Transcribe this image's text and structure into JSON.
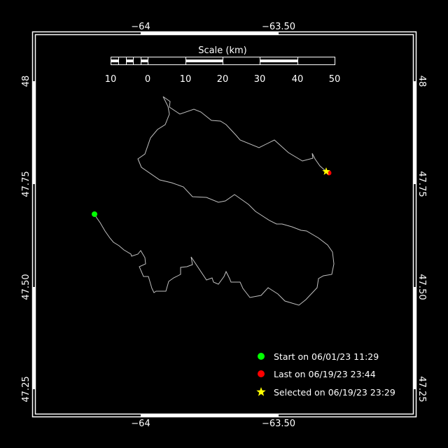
{
  "map": {
    "background": "#000000",
    "frame_color": "#ffffff",
    "track_color": "#c0c0c0",
    "lon_ticks": [
      {
        "value": -64,
        "label": "−64"
      },
      {
        "value": -63.5,
        "label": "−63.50"
      }
    ],
    "lat_ticks": [
      {
        "value": 48,
        "label": "48"
      },
      {
        "value": 47.75,
        "label": "47.75"
      },
      {
        "value": 47.5,
        "label": "47.50"
      },
      {
        "value": 47.25,
        "label": "47.25"
      }
    ],
    "scale": {
      "title": "Scale (km)",
      "labels": [
        "10",
        "0",
        "10",
        "20",
        "30",
        "40",
        "50"
      ]
    },
    "track": [
      [
        -64.1675,
        47.6769
      ],
      [
        -64.1599,
        47.6684
      ],
      [
        -64.1472,
        47.6565
      ],
      [
        -64.1294,
        47.636
      ],
      [
        -64.1117,
        47.619
      ],
      [
        -64.099,
        47.6088
      ],
      [
        -64.0787,
        47.6003
      ],
      [
        -64.0609,
        47.5901
      ],
      [
        -64.0355,
        47.5799
      ],
      [
        -64.033,
        47.5748
      ],
      [
        -64.0102,
        47.5799
      ],
      [
        -64.0,
        47.5884
      ],
      [
        -63.9848,
        47.5714
      ],
      [
        -63.9822,
        47.5561
      ],
      [
        -64.0051,
        47.5493
      ],
      [
        -63.9898,
        47.5255
      ],
      [
        -63.9721,
        47.5255
      ],
      [
        -63.9594,
        47.4966
      ],
      [
        -63.9518,
        47.4864
      ],
      [
        -63.9442,
        47.4898
      ],
      [
        -63.9086,
        47.4898
      ],
      [
        -63.8985,
        47.5136
      ],
      [
        -63.8807,
        47.5221
      ],
      [
        -63.8553,
        47.5306
      ],
      [
        -63.8553,
        47.5476
      ],
      [
        -63.8325,
        47.5493
      ],
      [
        -63.8122,
        47.5544
      ],
      [
        -63.8173,
        47.5731
      ],
      [
        -63.7614,
        47.517
      ],
      [
        -63.7411,
        47.5221
      ],
      [
        -63.736,
        47.5119
      ],
      [
        -63.7183,
        47.5068
      ],
      [
        -63.698,
        47.5255
      ],
      [
        -63.6904,
        47.5374
      ],
      [
        -63.6777,
        47.5204
      ],
      [
        -63.6726,
        47.5119
      ],
      [
        -63.6396,
        47.5119
      ],
      [
        -63.6295,
        47.4966
      ],
      [
        -63.6041,
        47.4745
      ],
      [
        -63.5635,
        47.4796
      ],
      [
        -63.5381,
        47.4983
      ],
      [
        -63.5026,
        47.483
      ],
      [
        -63.4772,
        47.466
      ],
      [
        -63.4264,
        47.4558
      ],
      [
        -63.401,
        47.4694
      ],
      [
        -63.3604,
        47.4983
      ],
      [
        -63.3553,
        47.5204
      ],
      [
        -63.3376,
        47.5272
      ],
      [
        -63.3071,
        47.5306
      ],
      [
        -63.2995,
        47.5561
      ],
      [
        -63.3046,
        47.585
      ],
      [
        -63.3224,
        47.602
      ],
      [
        -63.3553,
        47.619
      ],
      [
        -63.3985,
        47.636
      ],
      [
        -63.4188,
        47.6377
      ],
      [
        -63.4518,
        47.6463
      ],
      [
        -63.4873,
        47.6531
      ],
      [
        -63.5076,
        47.6531
      ],
      [
        -63.533,
        47.6616
      ],
      [
        -63.5838,
        47.6837
      ],
      [
        -63.6091,
        47.7007
      ],
      [
        -63.6523,
        47.7211
      ],
      [
        -63.6599,
        47.7245
      ],
      [
        -63.6929,
        47.7092
      ],
      [
        -63.7183,
        47.7058
      ],
      [
        -63.7614,
        47.7177
      ],
      [
        -63.8122,
        47.7194
      ],
      [
        -63.8452,
        47.7432
      ],
      [
        -63.8883,
        47.7534
      ],
      [
        -63.9315,
        47.7602
      ],
      [
        -63.9975,
        47.7908
      ],
      [
        -64.0102,
        47.8112
      ],
      [
        -63.9848,
        47.8231
      ],
      [
        -63.9645,
        47.8622
      ],
      [
        -63.9391,
        47.8827
      ],
      [
        -63.9112,
        47.8946
      ],
      [
        -63.8959,
        47.9201
      ],
      [
        -63.901,
        47.9388
      ],
      [
        -63.9188,
        47.9626
      ],
      [
        -63.8934,
        47.9507
      ],
      [
        -63.8959,
        47.9371
      ],
      [
        -63.8579,
        47.9201
      ],
      [
        -63.8071,
        47.932
      ],
      [
        -63.7817,
        47.9252
      ],
      [
        -63.7437,
        47.9048
      ],
      [
        -63.7107,
        47.9031
      ],
      [
        -63.6904,
        47.8946
      ],
      [
        -63.6548,
        47.869
      ],
      [
        -63.6396,
        47.8571
      ],
      [
        -63.5711,
        47.8384
      ],
      [
        -63.5152,
        47.8571
      ],
      [
        -63.4645,
        47.8265
      ],
      [
        -63.4137,
        47.8061
      ],
      [
        -63.3756,
        47.8129
      ],
      [
        -63.3782,
        47.8248
      ],
      [
        -63.368,
        47.8112
      ],
      [
        -63.3503,
        47.7942
      ],
      [
        -63.3274,
        47.7806
      ],
      [
        -63.3173,
        47.7772
      ]
    ],
    "start_point": [
      -64.1675,
      47.6769
    ],
    "last_point": [
      -63.3173,
      47.7772
    ],
    "selected_point": [
      -63.3274,
      47.7806
    ]
  },
  "legend": {
    "start": {
      "label": "Start on 06/01/23 11:29",
      "color": "#00ff00"
    },
    "last": {
      "label": "Last on 06/19/23 23:44",
      "color": "#ff0000"
    },
    "selected": {
      "label": "Selected on 06/19/23 23:29",
      "color": "#ffff00"
    }
  }
}
